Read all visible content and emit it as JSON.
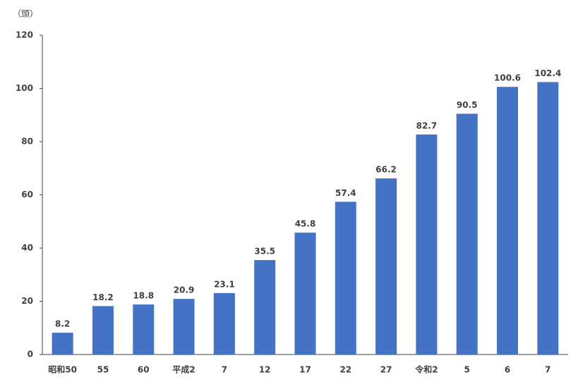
{
  "chart_data": {
    "type": "bar",
    "y_unit_label": "（頭）",
    "categories": [
      "昭和50",
      "55",
      "60",
      "平成2",
      "7",
      "12",
      "17",
      "22",
      "27",
      "令和2",
      "5",
      "6",
      "7"
    ],
    "values": [
      8.2,
      18.2,
      18.8,
      20.9,
      23.1,
      35.5,
      45.8,
      57.4,
      66.2,
      82.7,
      90.5,
      100.6,
      102.4
    ],
    "color": "#4472c4",
    "data_labels": true,
    "ylim": [
      0,
      120
    ],
    "yticks": [
      0,
      20,
      40,
      60,
      80,
      100,
      120
    ],
    "grid": false
  }
}
